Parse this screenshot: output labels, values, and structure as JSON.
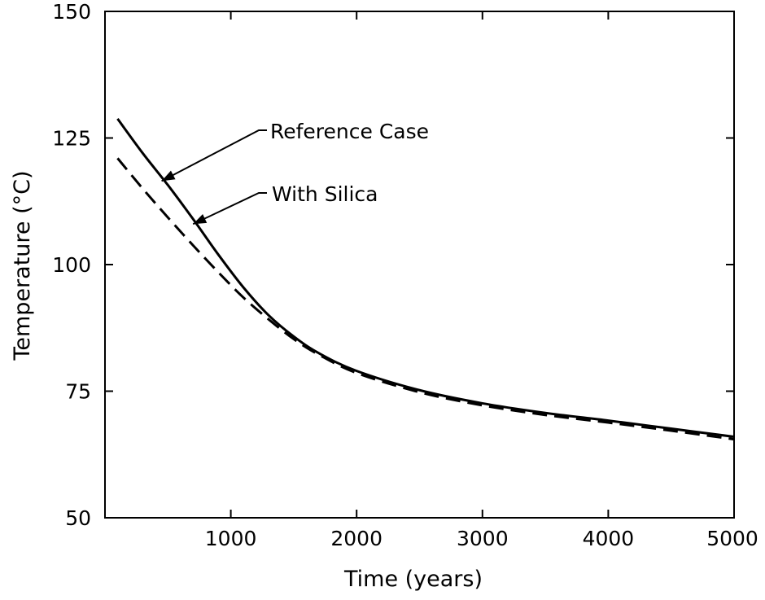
{
  "chart_data": {
    "type": "line",
    "title": "",
    "xlabel": "Time (years)",
    "ylabel": "Temperature (°C)",
    "xlim": [
      0,
      5000
    ],
    "ylim": [
      50,
      150
    ],
    "xticks": [
      1000,
      2000,
      3000,
      4000,
      5000
    ],
    "xtick_labels": [
      "1000",
      "2000",
      "3000",
      "4000",
      "5000"
    ],
    "yticks": [
      50,
      75,
      100,
      125,
      150
    ],
    "ytick_labels": [
      "50",
      "75",
      "100",
      "125",
      "150"
    ],
    "grid": false,
    "legend": "none",
    "series": [
      {
        "name": "Reference Case",
        "style": "solid",
        "color": "#000000",
        "x": [
          100,
          300,
          500,
          700,
          900,
          1100,
          1300,
          1500,
          1700,
          2000,
          2500,
          3000,
          3500,
          4000,
          4500,
          5000
        ],
        "y": [
          128.8,
          122.0,
          115.7,
          109.0,
          102.0,
          95.5,
          90.0,
          85.8,
          82.5,
          79.0,
          75.2,
          72.6,
          70.7,
          69.2,
          67.6,
          66.0
        ]
      },
      {
        "name": "With Silica",
        "style": "dashed",
        "color": "#000000",
        "x": [
          100,
          300,
          500,
          700,
          900,
          1100,
          1300,
          1500,
          1700,
          2000,
          2500,
          3000,
          3500,
          4000,
          4500,
          5000
        ],
        "y": [
          121.0,
          115.0,
          109.3,
          103.8,
          98.5,
          93.5,
          89.2,
          85.3,
          82.2,
          78.6,
          74.8,
          72.2,
          70.3,
          68.8,
          67.2,
          65.5
        ]
      }
    ],
    "annotations": [
      {
        "text": "Reference Case",
        "arrow_to": [
          450,
          116.5
        ]
      },
      {
        "text": "With Silica",
        "arrow_to": [
          700,
          108
        ]
      }
    ]
  }
}
